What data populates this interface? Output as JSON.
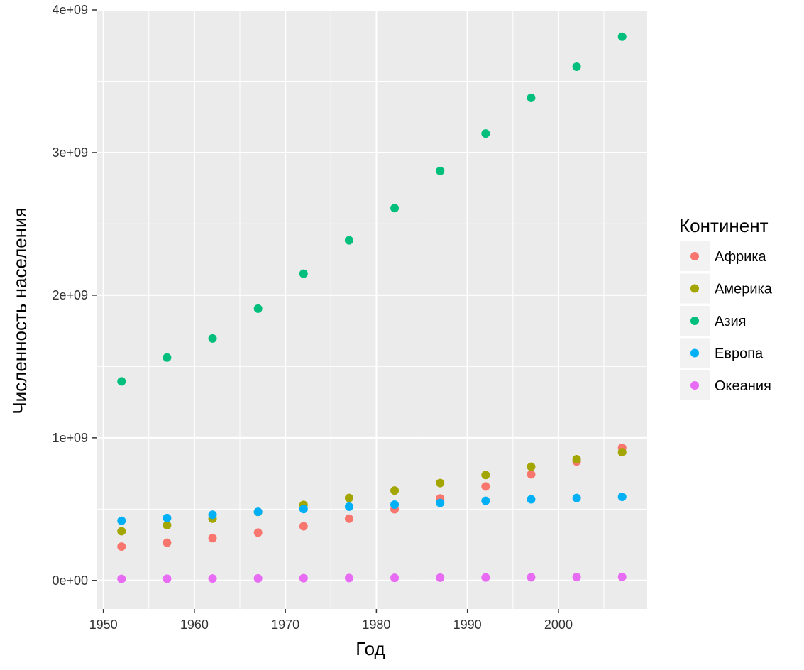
{
  "chart_data": {
    "type": "scatter",
    "xlabel": "Год",
    "ylabel": "Численность населения",
    "xlim": [
      1949.25,
      2009.75
    ],
    "ylim": [
      -200000000,
      4000000000
    ],
    "x_ticks": [
      1950,
      1960,
      1970,
      1980,
      1990,
      2000
    ],
    "x_tick_labels": [
      "1950",
      "1960",
      "1970",
      "1980",
      "1990",
      "2000"
    ],
    "y_ticks": [
      0,
      1000000000,
      2000000000,
      3000000000,
      4000000000
    ],
    "y_tick_labels": [
      "0e+00",
      "1e+09",
      "2e+09",
      "3e+09",
      "4e+09"
    ],
    "grid": true,
    "legend": {
      "title": "Континент",
      "position": "right"
    },
    "x": [
      1952,
      1957,
      1962,
      1967,
      1972,
      1977,
      1982,
      1987,
      1992,
      1997,
      2002,
      2007
    ],
    "series": [
      {
        "name": "Африка",
        "color": "#F8766D",
        "values": [
          237600000,
          264800000,
          296500000,
          335300000,
          379900000,
          433100000,
          499300000,
          574800000,
          659100000,
          743800000,
          833700000,
          929500000
        ]
      },
      {
        "name": "Америка",
        "color": "#A3A500",
        "values": [
          345200000,
          386900000,
          433300000,
          480700000,
          529400000,
          578100000,
          630300000,
          682800000,
          739300000,
          797000000,
          849800000,
          898900000
        ]
      },
      {
        "name": "Азия",
        "color": "#00BF7D",
        "values": [
          1395400000,
          1562800000,
          1696400000,
          1905700000,
          2150900000,
          2384500000,
          2610100000,
          2871200000,
          3133300000,
          3383300000,
          3601800000,
          3811900000
        ]
      },
      {
        "name": "Европа",
        "color": "#00B0F6",
        "values": [
          418100000,
          437900000,
          460400000,
          481200000,
          500600000,
          517200000,
          531300000,
          543100000,
          558000000,
          568900000,
          578200000,
          586100000
        ]
      },
      {
        "name": "Океания",
        "color": "#E76BF3",
        "values": [
          10700000,
          11900000,
          13200000,
          14600000,
          16100000,
          17200000,
          18400000,
          19700000,
          21000000,
          22200000,
          23500000,
          24500000
        ]
      }
    ]
  }
}
